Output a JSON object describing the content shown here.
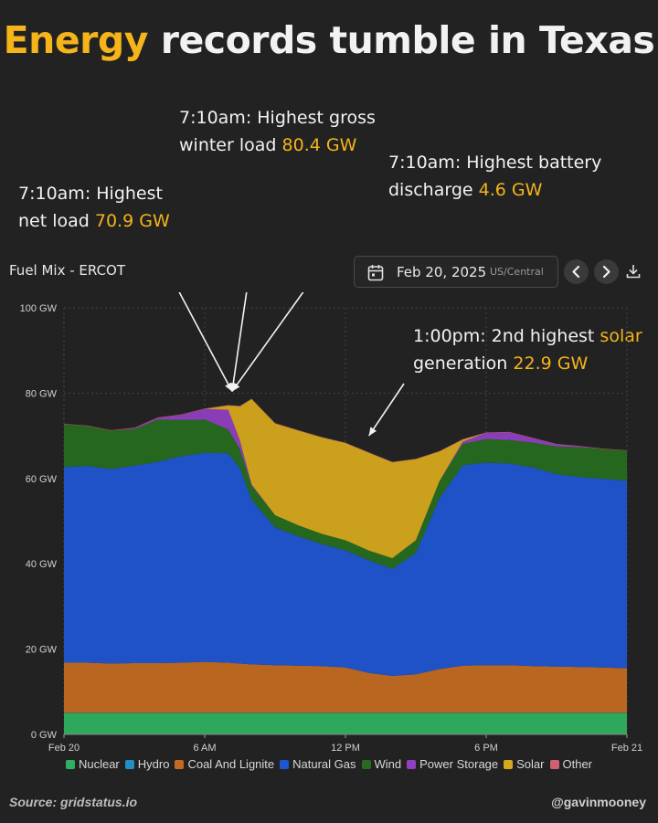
{
  "headline": {
    "highlight": "Energy",
    "rest": "records tumble in Texas"
  },
  "annotations": [
    {
      "id": "net-load",
      "line1": "7:10am: Highest",
      "line2_prefix": "net load",
      "value": "70.9 GW",
      "target_hour": 7.167,
      "target_gw": 80.4
    },
    {
      "id": "gross-load",
      "line1": "7:10am: Highest gross",
      "line2_prefix": "winter load",
      "value": "80.4 GW",
      "target_hour": 7.167,
      "target_gw": 80.4
    },
    {
      "id": "battery",
      "line1": "7:10am: Highest battery",
      "line2_prefix": "discharge",
      "value": "4.6 GW",
      "target_hour": 7.167,
      "target_gw": 80.4
    },
    {
      "id": "solar",
      "line1_prefix": "1:00pm: 2nd highest",
      "line1_hl": "solar",
      "line2_prefix": "generation",
      "value": "22.9 GW",
      "target_hour": 13.0,
      "target_gw": 70.0
    }
  ],
  "header": {
    "title": "Fuel Mix - ERCOT",
    "date": "Feb 20, 2025",
    "timezone": "US/Central",
    "icons": [
      "calendar-icon",
      "chevron-left-icon",
      "chevron-right-icon",
      "download-icon"
    ]
  },
  "colors": {
    "Nuclear": "#2fb060",
    "Hydro": "#1f8fc4",
    "Coal And Lignite": "#c26a22",
    "Natural Gas": "#1f55d0",
    "Wind": "#266b1f",
    "Power Storage": "#8f3fbf",
    "Solar": "#d4a81c",
    "Other": "#d06070",
    "accent": "#f4b41a"
  },
  "legend": [
    "Nuclear",
    "Hydro",
    "Coal And Lignite",
    "Natural Gas",
    "Wind",
    "Power Storage",
    "Solar",
    "Other"
  ],
  "footer": {
    "source": "Source: gridstatus.io",
    "handle": "@gavinmooney"
  },
  "chart_data": {
    "type": "area",
    "stacked": true,
    "x_unit": "hour",
    "x": [
      0,
      1,
      2,
      3,
      4,
      5,
      6,
      7,
      7.5,
      8,
      9,
      10,
      11,
      12,
      13,
      14,
      15,
      16,
      17,
      18,
      19,
      20,
      21,
      22,
      23,
      24
    ],
    "x_ticks": [
      {
        "hour": 0,
        "label": "Feb 20"
      },
      {
        "hour": 6,
        "label": "6 AM"
      },
      {
        "hour": 12,
        "label": "12 PM"
      },
      {
        "hour": 18,
        "label": "6 PM"
      },
      {
        "hour": 24,
        "label": "Feb 21"
      }
    ],
    "y_ticks": [
      {
        "value": 0,
        "label": "0 GW"
      },
      {
        "value": 20,
        "label": "20 GW"
      },
      {
        "value": 40,
        "label": "40 GW"
      },
      {
        "value": 60,
        "label": "60 GW"
      },
      {
        "value": 80,
        "label": "80 GW"
      },
      {
        "value": 100,
        "label": "100 GW"
      }
    ],
    "ylim": [
      0,
      100
    ],
    "grid": true,
    "legend_position": "bottom",
    "series": [
      {
        "name": "Nuclear",
        "values": [
          5.0,
          5.0,
          5.0,
          5.0,
          5.0,
          5.0,
          5.0,
          5.0,
          5.0,
          5.0,
          5.0,
          5.0,
          5.0,
          5.0,
          5.0,
          5.0,
          5.0,
          5.0,
          5.0,
          5.0,
          5.0,
          5.0,
          5.0,
          5.0,
          5.0,
          5.0
        ]
      },
      {
        "name": "Hydro",
        "values": [
          0.1,
          0.1,
          0.1,
          0.1,
          0.1,
          0.1,
          0.1,
          0.1,
          0.1,
          0.1,
          0.1,
          0.1,
          0.1,
          0.1,
          0.1,
          0.1,
          0.1,
          0.1,
          0.1,
          0.1,
          0.1,
          0.1,
          0.1,
          0.1,
          0.1,
          0.1
        ]
      },
      {
        "name": "Coal And Lignite",
        "values": [
          11.7,
          11.7,
          11.5,
          11.6,
          11.6,
          11.7,
          11.9,
          11.7,
          11.5,
          11.3,
          11.1,
          11.0,
          10.9,
          10.6,
          9.3,
          8.6,
          9.0,
          10.2,
          11.0,
          11.1,
          11.1,
          10.9,
          10.8,
          10.7,
          10.6,
          10.4
        ]
      },
      {
        "name": "Natural Gas",
        "values": [
          45.9,
          46.1,
          45.6,
          46.3,
          47.2,
          48.4,
          49.0,
          49.1,
          45.8,
          38.6,
          32.3,
          30.3,
          28.6,
          27.4,
          26.4,
          25.1,
          28.4,
          40.0,
          47.0,
          47.5,
          47.3,
          46.6,
          45.1,
          44.5,
          44.2,
          44.0
        ]
      },
      {
        "name": "Wind",
        "values": [
          10.0,
          9.4,
          9.0,
          8.6,
          9.9,
          8.5,
          7.8,
          5.6,
          4.5,
          3.3,
          2.9,
          2.6,
          2.4,
          2.4,
          2.3,
          2.5,
          3.0,
          4.0,
          5.0,
          5.5,
          5.5,
          5.8,
          6.5,
          7.0,
          7.0,
          7.0
        ]
      },
      {
        "name": "Power Storage",
        "values": [
          0.0,
          0.0,
          0.0,
          0.2,
          0.4,
          1.2,
          2.5,
          4.6,
          2.0,
          0.3,
          0.0,
          0.0,
          0.0,
          0.0,
          0.0,
          0.0,
          0.0,
          0.0,
          0.5,
          1.5,
          1.8,
          1.0,
          0.5,
          0.2,
          0.0,
          0.0
        ]
      },
      {
        "name": "Solar",
        "values": [
          0.0,
          0.0,
          0.0,
          0.0,
          0.0,
          0.0,
          0.0,
          1.0,
          8.0,
          20.0,
          21.5,
          22.2,
          22.6,
          22.8,
          22.9,
          22.5,
          19.0,
          7.0,
          0.5,
          0.0,
          0.0,
          0.0,
          0.0,
          0.0,
          0.0,
          0.0
        ]
      },
      {
        "name": "Other",
        "values": [
          0.1,
          0.1,
          0.1,
          0.1,
          0.1,
          0.1,
          0.1,
          0.1,
          0.1,
          0.1,
          0.1,
          0.1,
          0.1,
          0.1,
          0.1,
          0.1,
          0.1,
          0.1,
          0.1,
          0.1,
          0.1,
          0.1,
          0.1,
          0.1,
          0.1,
          0.1
        ]
      }
    ]
  }
}
